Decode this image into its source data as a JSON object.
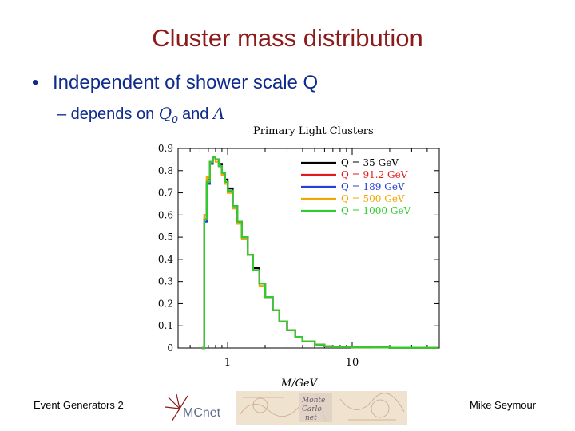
{
  "slide": {
    "title": "Cluster mass distribution",
    "bullet": "Independent of shower scale Q",
    "sub_prefix": "– depends on ",
    "sub_q0": "Q",
    "sub_q0_index": "0",
    "sub_and": " and ",
    "sub_lambda": "Λ"
  },
  "footer": {
    "left": "Event Generators 2",
    "right": "Mike Seymour",
    "logo_mcnet": "MCnet",
    "logo_mc_lines": [
      "Monte",
      "Carlo",
      "net"
    ]
  },
  "colors": {
    "title": "#8b1a1a",
    "bullet_text": "#0f2b8c"
  },
  "chart_data": {
    "type": "line",
    "title": "Primary Light Clusters",
    "xlabel": "M/GeV",
    "ylabel": "",
    "x_scale": "log",
    "xlim": [
      0.4,
      50
    ],
    "ylim": [
      0,
      0.9
    ],
    "xticks": [
      1,
      10
    ],
    "xtick_labels": [
      "1",
      "10"
    ],
    "yticks": [
      0,
      0.1,
      0.2,
      0.3,
      0.4,
      0.5,
      0.6,
      0.7,
      0.8,
      0.9
    ],
    "ytick_labels": [
      "0",
      "0.1",
      "0.2",
      "0.3",
      "0.4",
      "0.5",
      "0.6",
      "0.7",
      "0.8",
      "0.9"
    ],
    "legend_position": "top-right",
    "grid": false,
    "series": [
      {
        "name": "Q = 35 GeV",
        "color": "#000000",
        "x": [
          0.62,
          0.65,
          0.68,
          0.72,
          0.76,
          0.8,
          0.85,
          0.9,
          0.95,
          1.0,
          1.1,
          1.2,
          1.3,
          1.45,
          1.6,
          1.8,
          2.0,
          2.3,
          2.6,
          3.0,
          3.5,
          4.0,
          5.0,
          6.0,
          7.0,
          10.0,
          15.0,
          20.0,
          30.0
        ],
        "y": [
          0.0,
          0.58,
          0.74,
          0.84,
          0.86,
          0.85,
          0.83,
          0.79,
          0.76,
          0.72,
          0.64,
          0.57,
          0.5,
          0.42,
          0.36,
          0.29,
          0.23,
          0.17,
          0.12,
          0.08,
          0.05,
          0.03,
          0.015,
          0.008,
          0.005,
          0.003,
          0.002,
          0.0015,
          0.001
        ]
      },
      {
        "name": "Q = 91.2 GeV",
        "color": "#e31a1c",
        "x": [
          0.62,
          0.65,
          0.68,
          0.72,
          0.76,
          0.8,
          0.85,
          0.9,
          0.95,
          1.0,
          1.1,
          1.2,
          1.3,
          1.45,
          1.6,
          1.8,
          2.0,
          2.3,
          2.6,
          3.0,
          3.5,
          4.0,
          5.0,
          6.0,
          7.0,
          10.0,
          15.0,
          20.0,
          30.0
        ],
        "y": [
          0.0,
          0.6,
          0.76,
          0.84,
          0.86,
          0.85,
          0.82,
          0.78,
          0.75,
          0.71,
          0.64,
          0.57,
          0.5,
          0.42,
          0.35,
          0.29,
          0.23,
          0.17,
          0.12,
          0.08,
          0.05,
          0.03,
          0.015,
          0.008,
          0.005,
          0.003,
          0.002,
          0.0015,
          0.001
        ]
      },
      {
        "name": "Q = 189 GeV",
        "color": "#2b3fd6",
        "x": [
          0.62,
          0.65,
          0.68,
          0.72,
          0.76,
          0.8,
          0.85,
          0.9,
          0.95,
          1.0,
          1.1,
          1.2,
          1.3,
          1.45,
          1.6,
          1.8,
          2.0,
          2.3,
          2.6,
          3.0,
          3.5,
          4.0,
          5.0,
          6.0,
          7.0,
          10.0,
          15.0,
          20.0,
          30.0
        ],
        "y": [
          0.0,
          0.57,
          0.74,
          0.83,
          0.86,
          0.85,
          0.82,
          0.79,
          0.75,
          0.71,
          0.63,
          0.56,
          0.5,
          0.42,
          0.35,
          0.29,
          0.23,
          0.17,
          0.12,
          0.08,
          0.05,
          0.03,
          0.015,
          0.008,
          0.005,
          0.003,
          0.002,
          0.0015,
          0.001
        ]
      },
      {
        "name": "Q = 500 GeV",
        "color": "#f0a800",
        "x": [
          0.62,
          0.65,
          0.68,
          0.72,
          0.76,
          0.8,
          0.85,
          0.9,
          0.95,
          1.0,
          1.1,
          1.2,
          1.3,
          1.45,
          1.6,
          1.8,
          2.0,
          2.3,
          2.6,
          3.0,
          3.5,
          4.0,
          5.0,
          6.0,
          7.0,
          10.0,
          15.0,
          20.0,
          30.0
        ],
        "y": [
          0.0,
          0.6,
          0.77,
          0.84,
          0.86,
          0.84,
          0.82,
          0.78,
          0.74,
          0.7,
          0.63,
          0.56,
          0.49,
          0.42,
          0.35,
          0.28,
          0.23,
          0.17,
          0.12,
          0.08,
          0.05,
          0.03,
          0.015,
          0.008,
          0.005,
          0.003,
          0.002,
          0.0015,
          0.001
        ]
      },
      {
        "name": "Q = 1000 GeV",
        "color": "#2ecc2e",
        "x": [
          0.62,
          0.65,
          0.68,
          0.72,
          0.76,
          0.8,
          0.85,
          0.9,
          0.95,
          1.0,
          1.1,
          1.2,
          1.3,
          1.45,
          1.6,
          1.8,
          2.0,
          2.3,
          2.6,
          3.0,
          3.5,
          4.0,
          5.0,
          6.0,
          7.0,
          10.0,
          15.0,
          20.0,
          30.0
        ],
        "y": [
          0.0,
          0.58,
          0.75,
          0.84,
          0.86,
          0.85,
          0.82,
          0.79,
          0.75,
          0.71,
          0.64,
          0.57,
          0.5,
          0.42,
          0.35,
          0.29,
          0.23,
          0.17,
          0.12,
          0.08,
          0.05,
          0.03,
          0.015,
          0.008,
          0.005,
          0.003,
          0.002,
          0.0015,
          0.001
        ]
      }
    ]
  }
}
